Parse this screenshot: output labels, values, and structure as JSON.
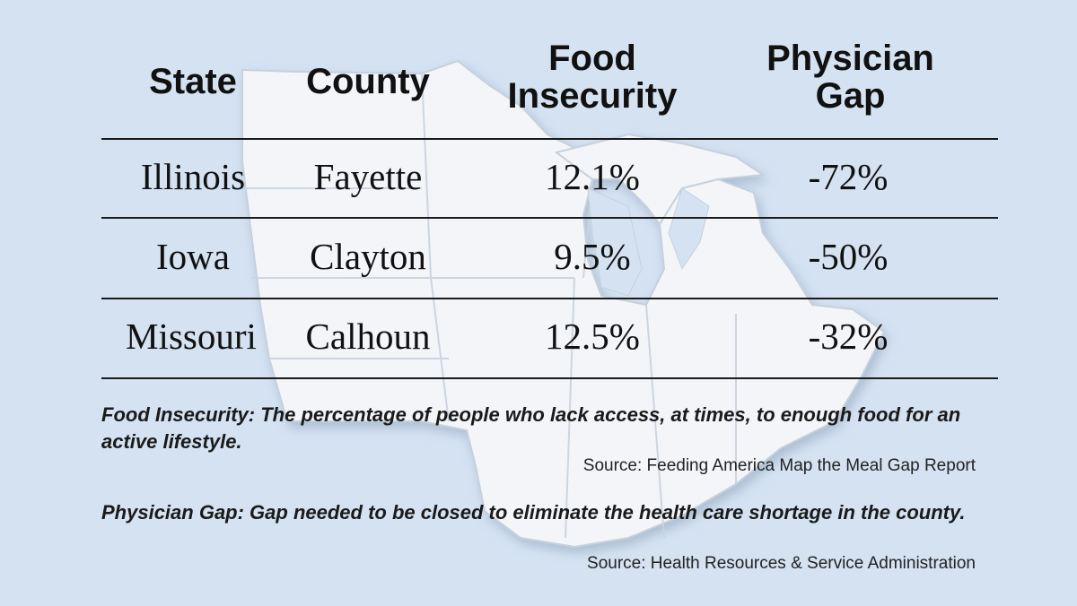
{
  "chart_data": {
    "type": "table",
    "columns": [
      "State",
      "County",
      "Food Insecurity",
      "Physician Gap"
    ],
    "column_lines": [
      [
        "State"
      ],
      [
        "County"
      ],
      [
        "Food",
        "Insecurity"
      ],
      [
        "Physician",
        "Gap"
      ]
    ],
    "rows": [
      {
        "state": "Illinois",
        "county": "Fayette",
        "food_insecurity": "12.1%",
        "physician_gap": "-72%"
      },
      {
        "state": "Iowa",
        "county": "Clayton",
        "food_insecurity": "9.5%",
        "physician_gap": "-50%"
      },
      {
        "state": "Missouri",
        "county": "Calhoun",
        "food_insecurity": "12.5%",
        "physician_gap": "-32%"
      }
    ]
  },
  "notes": {
    "food_insecurity_definition": "Food Insecurity: The percentage of people who lack access, at times, to enough food for an active lifestyle.",
    "food_insecurity_source": "Source: Feeding America Map the Meal Gap Report",
    "physician_gap_definition": "Physician Gap: Gap needed to be closed to eliminate the health care shortage in the county.",
    "physician_gap_source": "Source: Health Resources & Service Administration"
  },
  "colors": {
    "background": "#d4e2f2",
    "map_fill": "#f4f6f9",
    "map_border": "#c3cfdc",
    "text": "#111111"
  }
}
